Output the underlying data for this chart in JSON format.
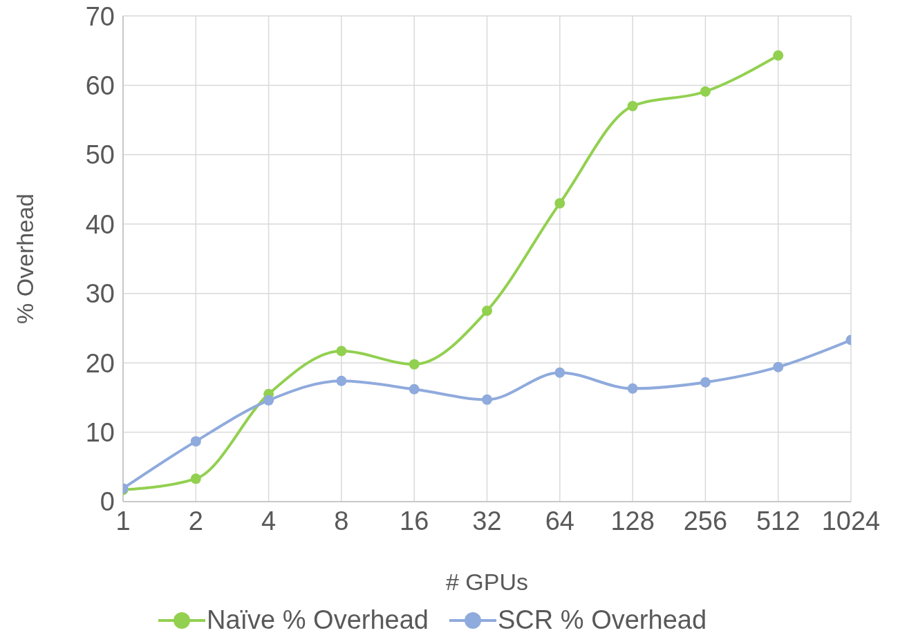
{
  "chart_data": {
    "type": "line",
    "xlabel": "# GPUs",
    "ylabel": "% Overhead",
    "categories": [
      "1",
      "2",
      "4",
      "8",
      "16",
      "32",
      "64",
      "128",
      "256",
      "512",
      "1024"
    ],
    "series": [
      {
        "name": "Naïve % Overhead",
        "color": "#92d050",
        "values": [
          1.7,
          3.3,
          15.5,
          21.7,
          19.8,
          27.5,
          43.0,
          57.0,
          59.1,
          64.3,
          null
        ]
      },
      {
        "name": "SCR % Overhead",
        "color": "#8faadc",
        "values": [
          1.9,
          8.7,
          14.6,
          17.4,
          16.2,
          14.7,
          18.6,
          16.3,
          17.2,
          19.4,
          23.3
        ]
      }
    ],
    "ylim": [
      0,
      70
    ],
    "yticks": [
      0,
      10,
      20,
      30,
      40,
      50,
      60,
      70
    ],
    "grid": true,
    "legend": "bottom",
    "marker": "circle",
    "line_style": "solid"
  }
}
